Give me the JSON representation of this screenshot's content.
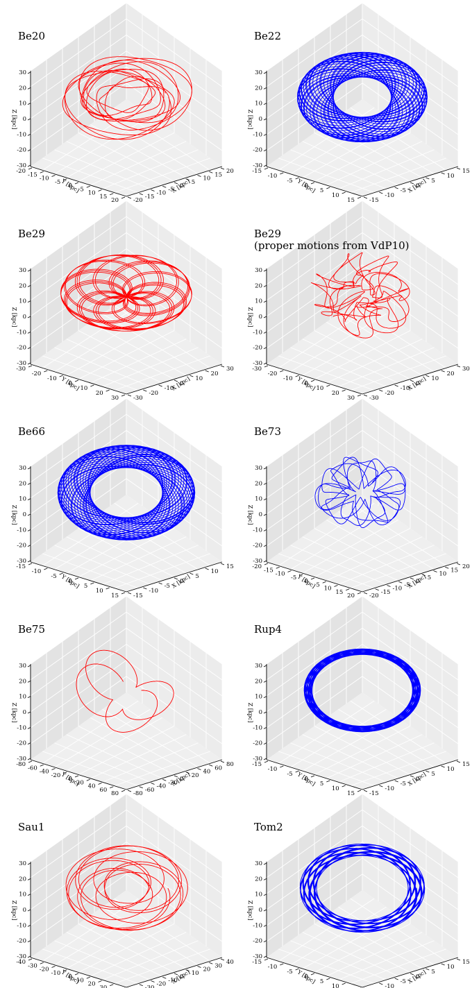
{
  "figure": {
    "panels": [
      {
        "title": "Be20",
        "subtitle": "",
        "color": "#ff0000",
        "shape": "rosette",
        "xy_lim": 20,
        "xy_ticks": [
          -20,
          -15,
          -10,
          -5,
          0,
          5,
          10,
          15,
          20
        ],
        "z_ticks": [
          -30,
          -20,
          -10,
          0,
          10,
          20,
          30
        ],
        "xlabel": "X [kpc]",
        "ylabel": "Y [kpc]",
        "zlabel": "Z [kpc]"
      },
      {
        "title": "Be22",
        "subtitle": "",
        "color": "#0000ff",
        "shape": "torus",
        "xy_lim": 15,
        "xy_ticks": [
          -15,
          -10,
          -5,
          0,
          5,
          10,
          15
        ],
        "z_ticks": [
          -30,
          -20,
          -10,
          0,
          10,
          20,
          30
        ],
        "xlabel": "X [kpc]",
        "ylabel": "Y [kpc]",
        "zlabel": "Z [kpc]"
      },
      {
        "title": "Be29",
        "subtitle": "",
        "color": "#ff0000",
        "shape": "star",
        "xy_lim": 30,
        "xy_ticks": [
          -30,
          -20,
          -10,
          0,
          10,
          20,
          30
        ],
        "z_ticks": [
          -30,
          -20,
          -10,
          0,
          10,
          20,
          30
        ],
        "xlabel": "X [kpc]",
        "ylabel": "Y [kpc]",
        "zlabel": "Z [kpc]"
      },
      {
        "title": "Be29",
        "subtitle": "(proper motions from VdP10)",
        "color": "#ff0000",
        "shape": "messy",
        "xy_lim": 30,
        "xy_ticks": [
          -30,
          -20,
          -10,
          0,
          10,
          20,
          30
        ],
        "z_ticks": [
          -30,
          -20,
          -10,
          0,
          10,
          20,
          30
        ],
        "xlabel": "X [kpc]",
        "ylabel": "Y [kpc]",
        "zlabel": "Z [kpc]"
      },
      {
        "title": "Be66",
        "subtitle": "",
        "color": "#0000ff",
        "shape": "torus_wide",
        "xy_lim": 15,
        "xy_ticks": [
          -15,
          -10,
          -5,
          0,
          5,
          10,
          15
        ],
        "z_ticks": [
          -30,
          -20,
          -10,
          0,
          10,
          20,
          30
        ],
        "xlabel": "X [kpc]",
        "ylabel": "Y [kpc]",
        "zlabel": "Z [kpc]"
      },
      {
        "title": "Be73",
        "subtitle": "",
        "color": "#0000ff",
        "shape": "loops",
        "xy_lim": 20,
        "xy_ticks": [
          -20,
          -15,
          -10,
          -5,
          0,
          5,
          10,
          15,
          20
        ],
        "z_ticks": [
          -30,
          -20,
          -10,
          0,
          10,
          20,
          30
        ],
        "xlabel": "X [kpc]",
        "ylabel": "Y [kpc]",
        "zlabel": "Z [kpc]"
      },
      {
        "title": "Be75",
        "subtitle": "",
        "color": "#ff0000",
        "shape": "petals",
        "xy_lim": 80,
        "xy_ticks": [
          -80,
          -60,
          -40,
          -20,
          0,
          20,
          40,
          60,
          80
        ],
        "z_ticks": [
          -30,
          -20,
          -10,
          0,
          10,
          20,
          30
        ],
        "xlabel": "X [kpc]",
        "ylabel": "Y [kpc]",
        "zlabel": "Z [kpc]"
      },
      {
        "title": "Rup4",
        "subtitle": "",
        "color": "#0000ff",
        "shape": "ring",
        "xy_lim": 15,
        "xy_ticks": [
          -15,
          -10,
          -5,
          0,
          5,
          10,
          15
        ],
        "z_ticks": [
          -30,
          -20,
          -10,
          0,
          10,
          20,
          30
        ],
        "xlabel": "X [kpc]",
        "ylabel": "Y [kpc]",
        "zlabel": "Z [kpc]"
      },
      {
        "title": "Sau1",
        "subtitle": "",
        "color": "#ff0000",
        "shape": "rosette_open",
        "xy_lim": 40,
        "xy_ticks": [
          -40,
          -30,
          -20,
          -10,
          0,
          10,
          20,
          30,
          40
        ],
        "z_ticks": [
          -30,
          -20,
          -10,
          0,
          10,
          20,
          30
        ],
        "xlabel": "X [kpc]",
        "ylabel": "Y [kpc]",
        "zlabel": "Z [kpc]"
      },
      {
        "title": "Tom2",
        "subtitle": "",
        "color": "#0000ff",
        "shape": "ring_thick",
        "xy_lim": 15,
        "xy_ticks": [
          -15,
          -10,
          -5,
          0,
          5,
          10,
          15
        ],
        "z_ticks": [
          -30,
          -20,
          -10,
          0,
          10,
          20,
          30
        ],
        "xlabel": "X [kpc]",
        "ylabel": "Y [kpc]",
        "zlabel": "Z [kpc]"
      }
    ]
  },
  "chart_data": [
    {
      "type": "line",
      "projection": "3d",
      "title": "Be20",
      "xlabel": "X [kpc]",
      "ylabel": "Y [kpc]",
      "zlabel": "Z [kpc]",
      "xlim": [
        -20,
        20
      ],
      "ylim": [
        -20,
        20
      ],
      "zlim": [
        -30,
        30
      ],
      "series": [
        {
          "color": "#ff0000",
          "description_values": {
            "r_min_kpc": 3.5,
            "r_max_kpc": 11,
            "z_max_kpc": 6
          }
        }
      ],
      "grid": true
    },
    {
      "type": "line",
      "projection": "3d",
      "title": "Be22",
      "xlabel": "X [kpc]",
      "ylabel": "Y [kpc]",
      "zlabel": "Z [kpc]",
      "xlim": [
        -15,
        15
      ],
      "ylim": [
        -15,
        15
      ],
      "zlim": [
        -30,
        30
      ],
      "series": [
        {
          "color": "#0000ff",
          "description_values": {
            "r_min_kpc": 4.5,
            "r_max_kpc": 13,
            "z_max_kpc": 2
          }
        }
      ],
      "grid": true
    },
    {
      "type": "line",
      "projection": "3d",
      "title": "Be29",
      "xlabel": "X [kpc]",
      "ylabel": "Y [kpc]",
      "zlabel": "Z [kpc]",
      "xlim": [
        -30,
        30
      ],
      "ylim": [
        -30,
        30
      ],
      "zlim": [
        -30,
        30
      ],
      "series": [
        {
          "color": "#ff0000",
          "description_values": {
            "r_min_kpc": 0.5,
            "r_max_kpc": 23,
            "z_max_kpc": 3
          }
        }
      ],
      "grid": true
    },
    {
      "type": "line",
      "projection": "3d",
      "title": "Be29",
      "subtitle": "(proper motions from VdP10)",
      "xlabel": "X [kpc]",
      "ylabel": "Y [kpc]",
      "zlabel": "Z [kpc]",
      "xlim": [
        -30,
        30
      ],
      "ylim": [
        -30,
        30
      ],
      "zlim": [
        -30,
        30
      ],
      "series": [
        {
          "color": "#ff0000",
          "description_values": {
            "r_min_kpc": 1,
            "r_max_kpc": 19,
            "z_max_kpc": 15
          }
        }
      ],
      "grid": true
    },
    {
      "type": "line",
      "projection": "3d",
      "title": "Be66",
      "xlabel": "X [kpc]",
      "ylabel": "Y [kpc]",
      "zlabel": "Z [kpc]",
      "xlim": [
        -15,
        15
      ],
      "ylim": [
        -15,
        15
      ],
      "zlim": [
        -30,
        30
      ],
      "series": [
        {
          "color": "#0000ff",
          "description_values": {
            "r_min_kpc": 6,
            "r_max_kpc": 15,
            "z_max_kpc": 3
          }
        }
      ],
      "grid": true
    },
    {
      "type": "line",
      "projection": "3d",
      "title": "Be73",
      "xlabel": "X [kpc]",
      "ylabel": "Y [kpc]",
      "zlabel": "Z [kpc]",
      "xlim": [
        -20,
        20
      ],
      "ylim": [
        -20,
        20
      ],
      "zlim": [
        -30,
        30
      ],
      "series": [
        {
          "color": "#0000ff",
          "description_values": {
            "r_min_kpc": 1,
            "r_max_kpc": 13,
            "z_max_kpc": 6
          }
        }
      ],
      "grid": true
    },
    {
      "type": "line",
      "projection": "3d",
      "title": "Be75",
      "xlabel": "X [kpc]",
      "ylabel": "Y [kpc]",
      "zlabel": "Z [kpc]",
      "xlim": [
        -80,
        80
      ],
      "ylim": [
        -80,
        80
      ],
      "zlim": [
        -30,
        30
      ],
      "series": [
        {
          "color": "#ff0000",
          "description_values": {
            "r_min_kpc": 5,
            "r_max_kpc": 45,
            "z_max_kpc": 25
          }
        }
      ],
      "grid": true
    },
    {
      "type": "line",
      "projection": "3d",
      "title": "Rup4",
      "xlabel": "X [kpc]",
      "ylabel": "Y [kpc]",
      "zlabel": "Z [kpc]",
      "xlim": [
        -15,
        15
      ],
      "ylim": [
        -15,
        15
      ],
      "zlim": [
        -30,
        30
      ],
      "series": [
        {
          "color": "#0000ff",
          "description_values": {
            "r_min_kpc": 11,
            "r_max_kpc": 13,
            "z_max_kpc": 1
          }
        }
      ],
      "grid": true
    },
    {
      "type": "line",
      "projection": "3d",
      "title": "Sau1",
      "xlabel": "X [kpc]",
      "ylabel": "Y [kpc]",
      "zlabel": "Z [kpc]",
      "xlim": [
        -40,
        40
      ],
      "ylim": [
        -40,
        40
      ],
      "zlim": [
        -30,
        30
      ],
      "series": [
        {
          "color": "#ff0000",
          "description_values": {
            "r_min_kpc": 8,
            "r_max_kpc": 22,
            "z_max_kpc": 3
          }
        }
      ],
      "grid": true
    },
    {
      "type": "line",
      "projection": "3d",
      "title": "Tom2",
      "xlabel": "X [kpc]",
      "ylabel": "Y [kpc]",
      "zlabel": "Z [kpc]",
      "xlim": [
        -15,
        15
      ],
      "ylim": [
        -15,
        15
      ],
      "zlim": [
        -30,
        30
      ],
      "series": [
        {
          "color": "#0000ff",
          "description_values": {
            "r_min_kpc": 10,
            "r_max_kpc": 14,
            "z_max_kpc": 2
          }
        }
      ],
      "grid": true
    }
  ]
}
